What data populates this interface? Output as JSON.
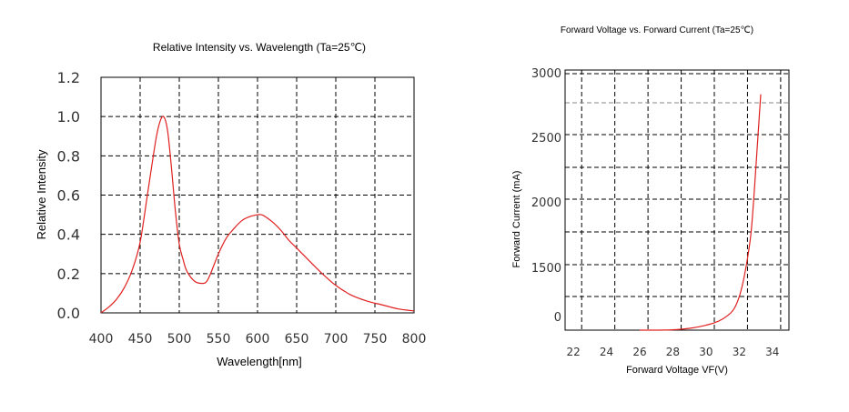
{
  "chart_data": [
    {
      "type": "line",
      "title": "Relative Intensity vs. Wavelength (Ta=25℃)",
      "xlabel": "Wavelength[nm]",
      "ylabel": "Relative Intensity",
      "xlim": [
        400,
        800
      ],
      "ylim": [
        0.0,
        1.2
      ],
      "x_ticks": [
        "400",
        "450",
        "500",
        "550",
        "600",
        "650",
        "700",
        "750",
        "800"
      ],
      "y_ticks": [
        "0.0",
        "0.2",
        "0.4",
        "0.6",
        "0.8",
        "1.0",
        "1.2"
      ],
      "grid": true,
      "series": [
        {
          "color": "#e02020",
          "x": [
            400,
            410,
            420,
            430,
            440,
            450,
            460,
            470,
            475,
            480,
            485,
            490,
            495,
            500,
            505,
            510,
            520,
            530,
            535,
            540,
            550,
            560,
            570,
            580,
            590,
            600,
            605,
            610,
            620,
            630,
            640,
            650,
            660,
            680,
            700,
            720,
            740,
            760,
            780,
            800
          ],
          "y": [
            0.0,
            0.03,
            0.07,
            0.13,
            0.22,
            0.36,
            0.62,
            0.88,
            0.97,
            1.0,
            0.93,
            0.74,
            0.52,
            0.35,
            0.27,
            0.21,
            0.16,
            0.15,
            0.16,
            0.2,
            0.3,
            0.38,
            0.43,
            0.47,
            0.49,
            0.5,
            0.5,
            0.49,
            0.46,
            0.42,
            0.37,
            0.33,
            0.29,
            0.21,
            0.14,
            0.09,
            0.06,
            0.04,
            0.02,
            0.01
          ]
        }
      ]
    },
    {
      "type": "line",
      "title": "Forward Voltage vs. Forward Current (Ta=25℃)",
      "xlabel": "Forward Voltage  VF(V)",
      "ylabel": "Forward Current (mA)",
      "xlim": [
        21.5,
        35.0
      ],
      "ylim": [
        0,
        3000
      ],
      "x_ticks": [
        "22",
        "24",
        "26",
        "28",
        "30",
        "32",
        "34"
      ],
      "y_ticks": [
        "0",
        "1500",
        "2000",
        "2500",
        "3000"
      ],
      "grid": true,
      "series": [
        {
          "color": "#e02020",
          "x": [
            26.0,
            26.5,
            27.0,
            27.5,
            28.0,
            28.5,
            29.0,
            29.5,
            30.0,
            30.5,
            31.0,
            31.5,
            31.8,
            32.1,
            32.4,
            32.7,
            32.9,
            33.1,
            33.3
          ],
          "y": [
            0,
            0,
            0,
            1,
            4,
            11,
            22,
            38,
            60,
            88,
            135,
            210,
            300,
            470,
            750,
            1150,
            1650,
            2250,
            2850
          ]
        }
      ]
    }
  ]
}
